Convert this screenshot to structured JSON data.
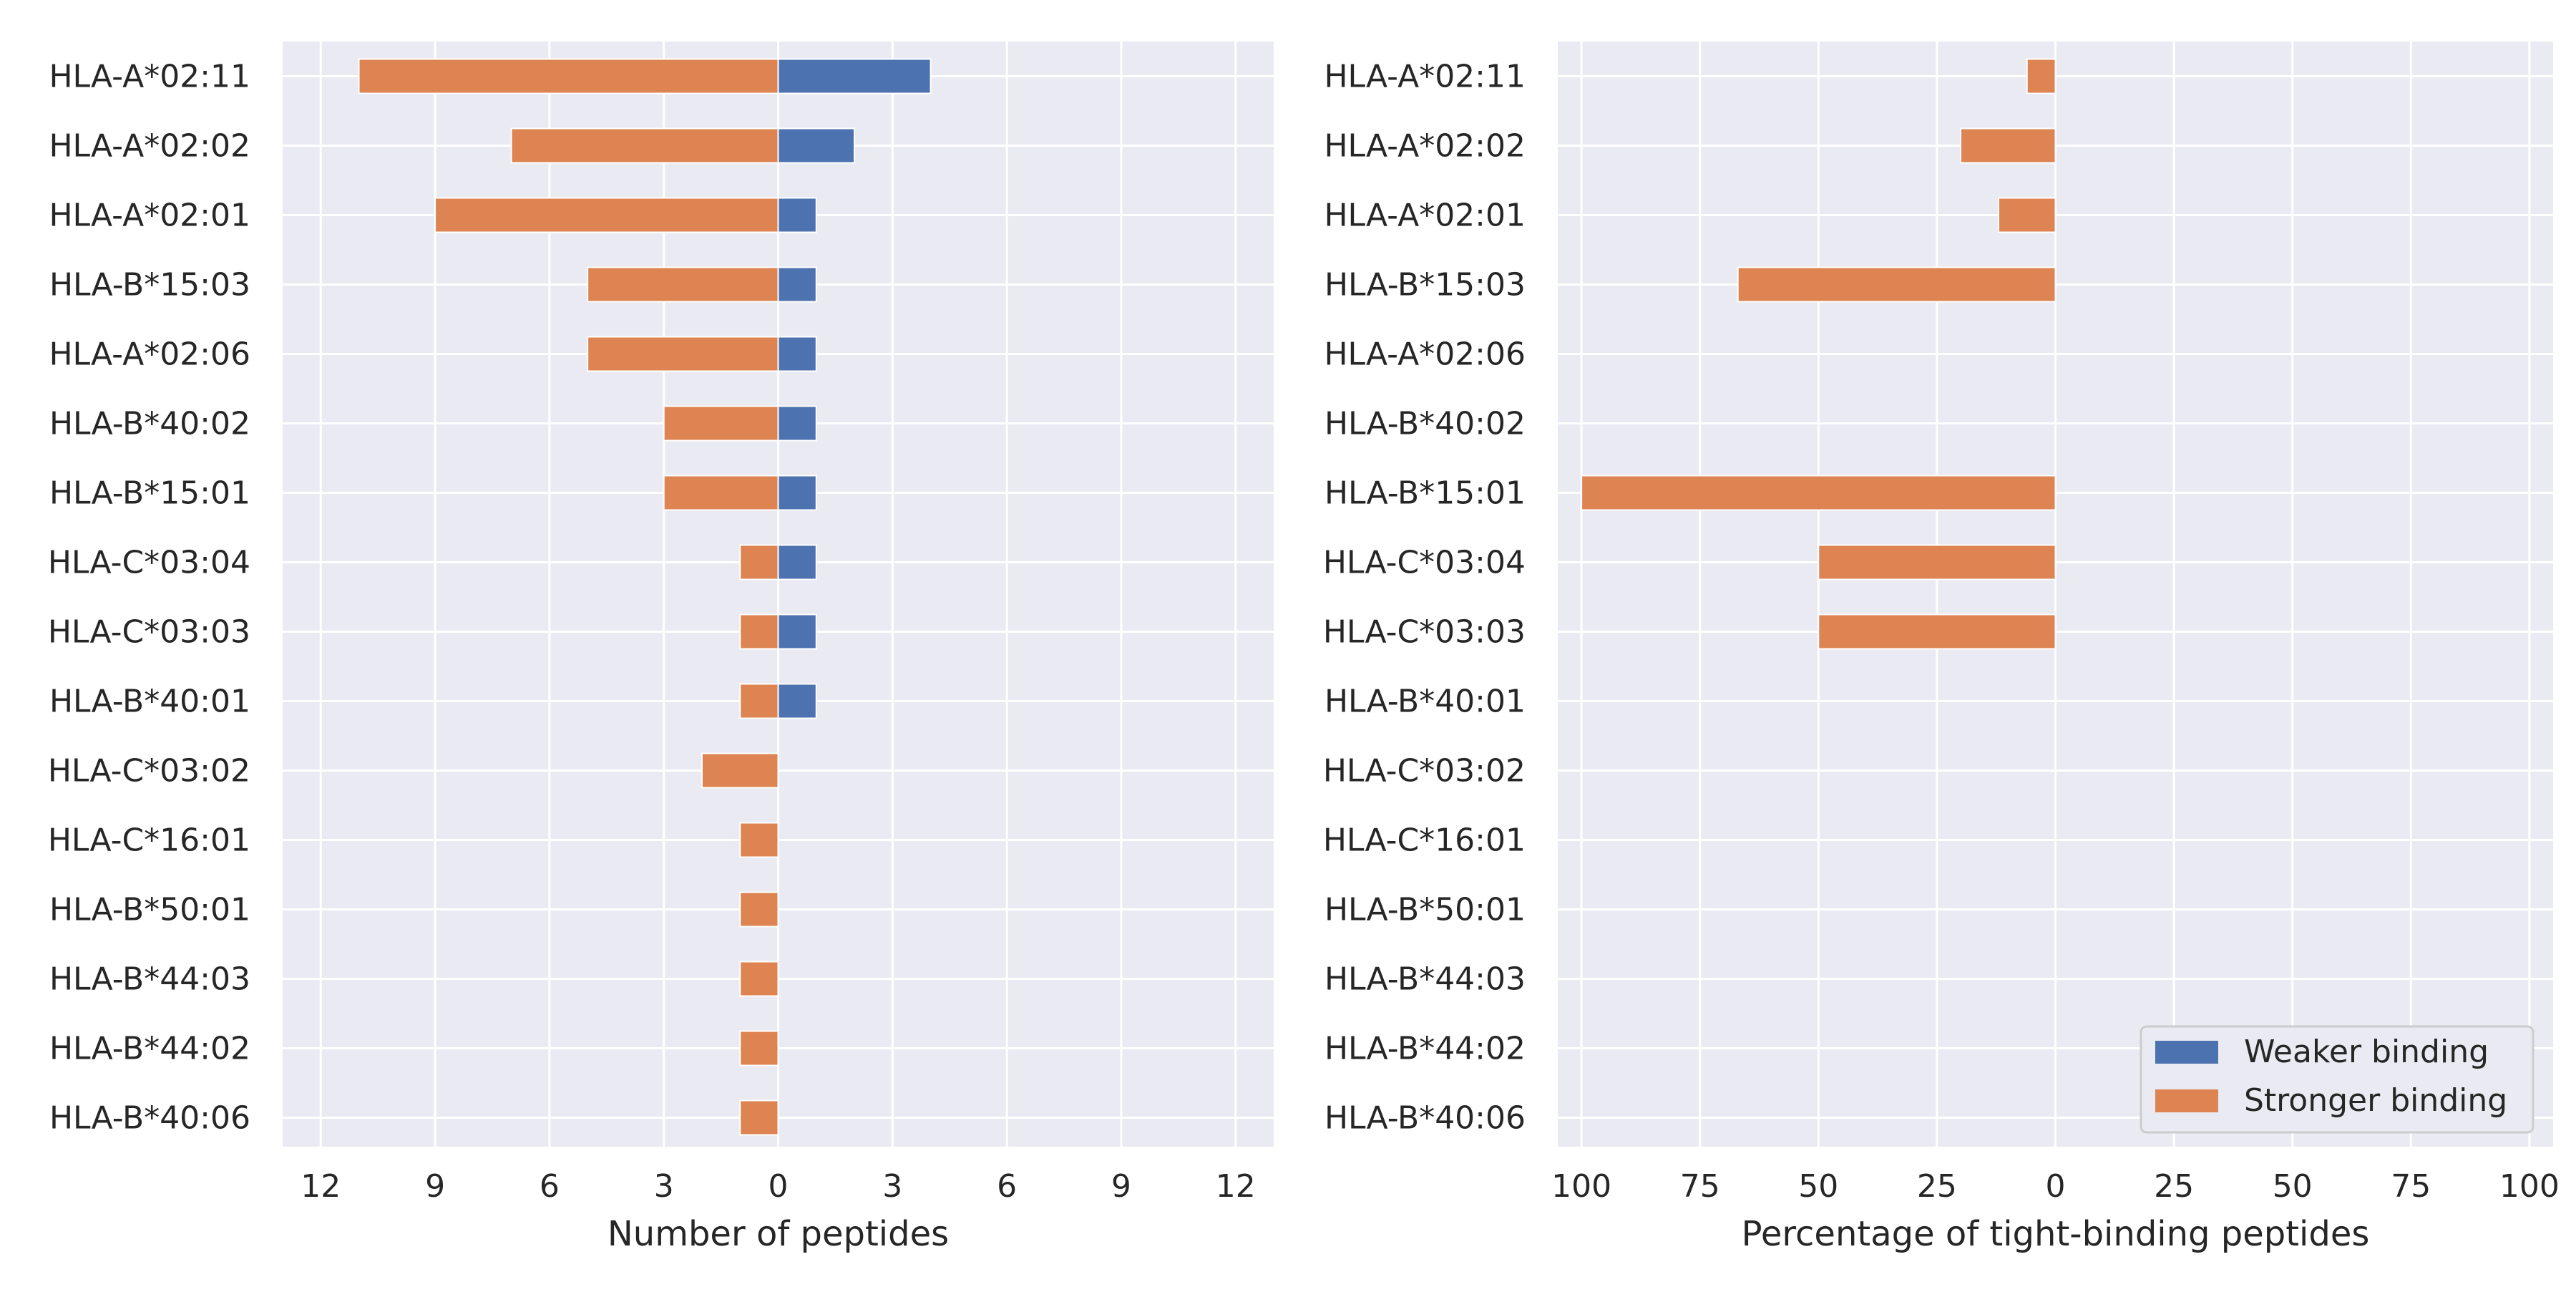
{
  "colors": {
    "weaker": "#4c72b0",
    "stronger": "#dd8452",
    "panel_bg": "#eaeaf2",
    "grid": "#ffffff"
  },
  "legend": {
    "position": "lower-right",
    "weaker_label": "Weaker binding",
    "stronger_label": "Stronger binding"
  },
  "chart_data": [
    {
      "type": "bar",
      "orientation": "horizontal-diverging",
      "xlabel": "Number of peptides",
      "ylabel": "",
      "xlim": [
        -13,
        13
      ],
      "xticks": [
        -12,
        -9,
        -6,
        -3,
        0,
        3,
        6,
        9,
        12
      ],
      "xtick_labels": [
        "12",
        "9",
        "6",
        "3",
        "0",
        "3",
        "6",
        "9",
        "12"
      ],
      "grid": true,
      "categories": [
        "HLA-A*02:11",
        "HLA-A*02:02",
        "HLA-A*02:01",
        "HLA-B*15:03",
        "HLA-A*02:06",
        "HLA-B*40:02",
        "HLA-B*15:01",
        "HLA-C*03:04",
        "HLA-C*03:03",
        "HLA-B*40:01",
        "HLA-C*03:02",
        "HLA-C*16:01",
        "HLA-B*50:01",
        "HLA-B*44:03",
        "HLA-B*44:02",
        "HLA-B*40:06"
      ],
      "series": [
        {
          "name": "Weaker binding",
          "side": "right",
          "values": [
            4,
            2,
            1,
            1,
            1,
            1,
            1,
            1,
            1,
            1,
            0,
            0,
            0,
            0,
            0,
            0
          ]
        },
        {
          "name": "Stronger binding",
          "side": "left",
          "values": [
            11,
            7,
            9,
            5,
            5,
            3,
            3,
            1,
            1,
            1,
            2,
            1,
            1,
            1,
            1,
            1
          ]
        }
      ]
    },
    {
      "type": "bar",
      "orientation": "horizontal-diverging",
      "xlabel": "Percentage of tight-binding peptides",
      "ylabel": "",
      "xlim": [
        -105,
        105
      ],
      "xticks": [
        -100,
        -75,
        -50,
        -25,
        0,
        25,
        50,
        75,
        100
      ],
      "xtick_labels": [
        "100",
        "75",
        "50",
        "25",
        "0",
        "25",
        "50",
        "75",
        "100"
      ],
      "grid": true,
      "categories": [
        "HLA-A*02:11",
        "HLA-A*02:02",
        "HLA-A*02:01",
        "HLA-B*15:03",
        "HLA-A*02:06",
        "HLA-B*40:02",
        "HLA-B*15:01",
        "HLA-C*03:04",
        "HLA-C*03:03",
        "HLA-B*40:01",
        "HLA-C*03:02",
        "HLA-C*16:01",
        "HLA-B*50:01",
        "HLA-B*44:03",
        "HLA-B*44:02",
        "HLA-B*40:06"
      ],
      "series": [
        {
          "name": "Weaker binding",
          "side": "right",
          "values": [
            0,
            0,
            0,
            0,
            0,
            0,
            0,
            0,
            0,
            0,
            0,
            0,
            0,
            0,
            0,
            0
          ]
        },
        {
          "name": "Stronger binding",
          "side": "left",
          "values": [
            6,
            20,
            12,
            67,
            0,
            0,
            100,
            50,
            50,
            0,
            0,
            0,
            0,
            0,
            0,
            0
          ]
        }
      ]
    }
  ]
}
